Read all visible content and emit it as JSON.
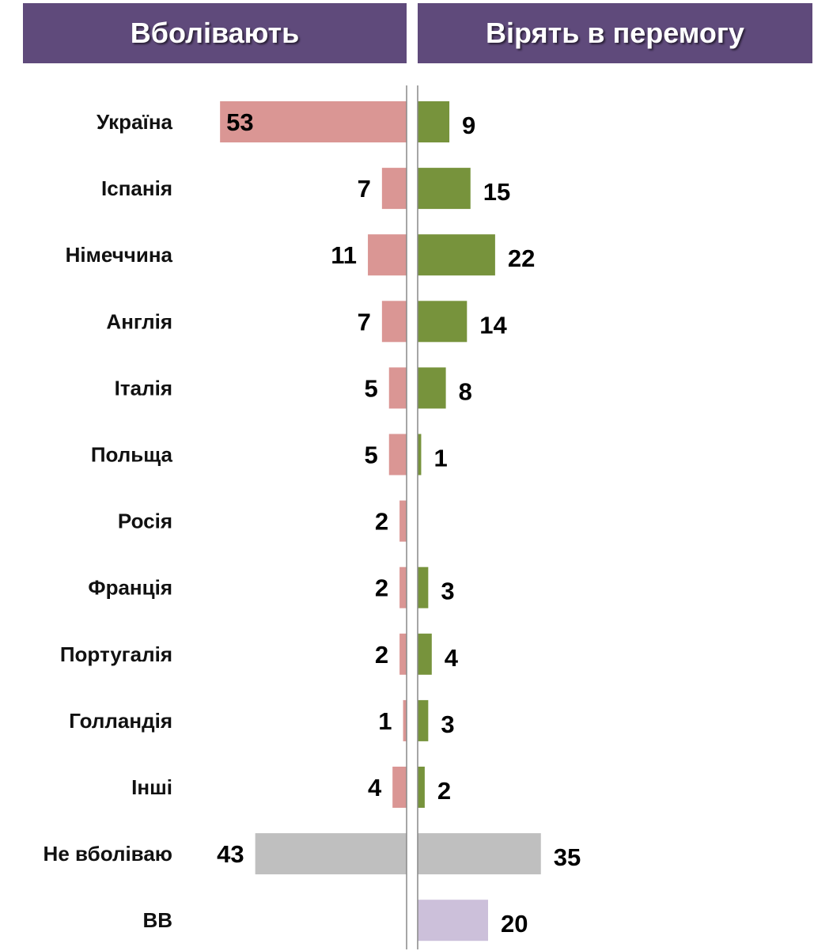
{
  "headers": {
    "left": "Вболівають",
    "right": "Вірять в перемогу"
  },
  "colors": {
    "header_bg": "#5f4a7b",
    "support": "#da9694",
    "believe": "#77933c",
    "neutral": "#bfbfbf",
    "dk": "#ccc0da"
  },
  "chart_data": {
    "type": "bar",
    "categories": [
      "Україна",
      "Іспанія",
      "Німеччина",
      "Англія",
      "Італія",
      "Польща",
      "Росія",
      "Франція",
      "Португалія",
      "Голландія",
      "Інші",
      "Не вболіваю",
      "ВВ"
    ],
    "series": [
      {
        "name": "Вболівають",
        "values": [
          53,
          7,
          11,
          7,
          5,
          5,
          2,
          2,
          2,
          1,
          4,
          43,
          null
        ]
      },
      {
        "name": "Вірять в перемогу",
        "values": [
          9,
          15,
          22,
          14,
          8,
          1,
          null,
          3,
          4,
          3,
          2,
          35,
          20
        ]
      }
    ],
    "xlim": [
      0,
      55
    ],
    "grid": false,
    "legend": "top"
  }
}
